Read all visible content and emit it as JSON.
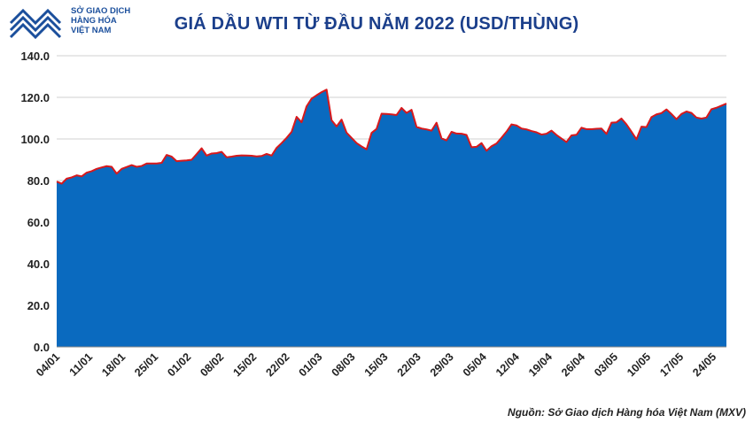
{
  "header": {
    "logo_lines": [
      "SỞ GIAO DỊCH",
      "HÀNG HÓA",
      "VIỆT NAM"
    ],
    "title": "GIÁ DẦU WTI TỪ ĐẦU NĂM 2022 (USD/THÙNG)"
  },
  "footer": {
    "source": "Nguồn: Sở Giao dịch Hàng hóa Việt Nam (MXV)"
  },
  "colors": {
    "area_fill": "#0a6abf",
    "line": "#d7191c",
    "title": "#1b3f8b",
    "logo": "#1b4f9c"
  },
  "chart_data": {
    "type": "area",
    "ylim": [
      0,
      140
    ],
    "yticks": [
      "0.0",
      "20.0",
      "40.0",
      "60.0",
      "80.0",
      "100.0",
      "120.0",
      "140.0"
    ],
    "xticks": [
      "04/01",
      "11/01",
      "18/01",
      "25/01",
      "01/02",
      "08/02",
      "15/02",
      "22/02",
      "01/03",
      "08/03",
      "15/03",
      "22/03",
      "29/03",
      "05/04",
      "12/04",
      "19/04",
      "26/04",
      "03/05",
      "10/05",
      "17/05",
      "24/05"
    ],
    "grid": true,
    "values": [
      79.5,
      78.5,
      80.9,
      81.5,
      82.5,
      82.0,
      83.8,
      84.5,
      85.6,
      86.3,
      86.9,
      86.6,
      83.3,
      85.6,
      86.5,
      87.4,
      86.6,
      87.0,
      88.2,
      88.2,
      88.2,
      88.5,
      92.3,
      91.5,
      89.3,
      89.5,
      89.7,
      90.0,
      92.7,
      95.5,
      92.0,
      93.0,
      93.2,
      93.8,
      91.2,
      91.5,
      91.9,
      92.1,
      92.0,
      91.9,
      91.6,
      91.8,
      92.8,
      92.0,
      95.7,
      98.0,
      100.5,
      103.4,
      110.6,
      108.0,
      115.7,
      119.4,
      121.0,
      122.5,
      123.7,
      109.0,
      106.0,
      109.3,
      103.0,
      100.5,
      98.0,
      96.4,
      95.0,
      102.9,
      104.8,
      112.1,
      112.0,
      111.8,
      111.5,
      114.9,
      112.5,
      114.0,
      105.8,
      105.0,
      104.6,
      104.0,
      107.8,
      100.3,
      99.3,
      103.4,
      102.6,
      102.5,
      101.9,
      96.0,
      96.2,
      98.0,
      94.3,
      96.5,
      97.8,
      100.6,
      103.5,
      107.0,
      106.5,
      105.0,
      104.6,
      103.8,
      103.2,
      102.1,
      102.5,
      104.0,
      101.9,
      100.2,
      98.5,
      101.7,
      102.0,
      105.4,
      104.7,
      104.7,
      104.9,
      105.0,
      102.4,
      107.8,
      108.0,
      109.8,
      107.0,
      103.5,
      99.8,
      105.9,
      105.7,
      110.5,
      111.8,
      112.4,
      114.2,
      112.0,
      109.5,
      112.0,
      113.2,
      112.5,
      110.3,
      109.8,
      110.3,
      114.3,
      115.0,
      116.0,
      117.0
    ]
  }
}
